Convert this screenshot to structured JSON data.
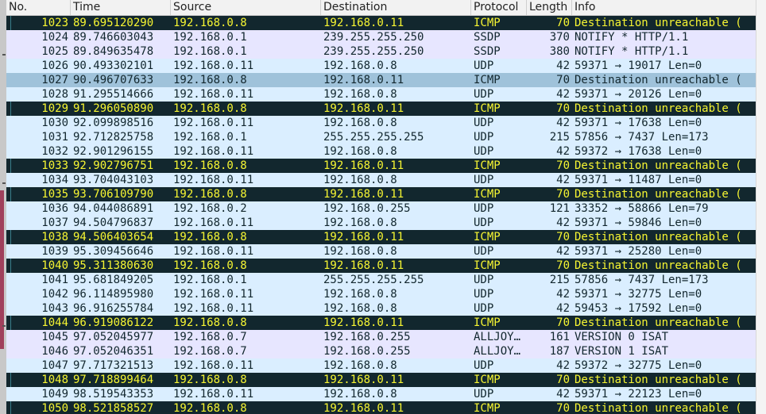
{
  "columns": [
    "No.",
    "Time",
    "Source",
    "Destination",
    "Protocol",
    "Length",
    "Info"
  ],
  "colors": {
    "icmp_bg": "#12272e",
    "icmp_fg": "#f7f632",
    "udp_bg": "#daeeff",
    "other_bg": "#e7e6ff",
    "selected_bg": "#9fc2da"
  },
  "packets": [
    {
      "no": "1023",
      "time": "89.695120290",
      "src": "192.168.0.8",
      "dst": "192.168.0.11",
      "proto": "ICMP",
      "len": "70",
      "info": "Destination unreachable (",
      "kind": "icmp"
    },
    {
      "no": "1024",
      "time": "89.746603043",
      "src": "192.168.0.1",
      "dst": "239.255.255.250",
      "proto": "SSDP",
      "len": "370",
      "info": "NOTIFY * HTTP/1.1",
      "kind": "other"
    },
    {
      "no": "1025",
      "time": "89.849635478",
      "src": "192.168.0.1",
      "dst": "239.255.255.250",
      "proto": "SSDP",
      "len": "380",
      "info": "NOTIFY * HTTP/1.1",
      "kind": "other"
    },
    {
      "no": "1026",
      "time": "90.493302101",
      "src": "192.168.0.11",
      "dst": "192.168.0.8",
      "proto": "UDP",
      "len": "42",
      "info": "59371 → 19017 Len=0",
      "kind": "udp"
    },
    {
      "no": "1027",
      "time": "90.496707633",
      "src": "192.168.0.8",
      "dst": "192.168.0.11",
      "proto": "ICMP",
      "len": "70",
      "info": "Destination unreachable (",
      "kind": "sel"
    },
    {
      "no": "1028",
      "time": "91.295514666",
      "src": "192.168.0.11",
      "dst": "192.168.0.8",
      "proto": "UDP",
      "len": "42",
      "info": "59371 → 20126 Len=0",
      "kind": "udp"
    },
    {
      "no": "1029",
      "time": "91.296050890",
      "src": "192.168.0.8",
      "dst": "192.168.0.11",
      "proto": "ICMP",
      "len": "70",
      "info": "Destination unreachable (",
      "kind": "icmp"
    },
    {
      "no": "1030",
      "time": "92.099898516",
      "src": "192.168.0.11",
      "dst": "192.168.0.8",
      "proto": "UDP",
      "len": "42",
      "info": "59371 → 17638 Len=0",
      "kind": "udp"
    },
    {
      "no": "1031",
      "time": "92.712825758",
      "src": "192.168.0.1",
      "dst": "255.255.255.255",
      "proto": "UDP",
      "len": "215",
      "info": "57856 → 7437 Len=173",
      "kind": "udp"
    },
    {
      "no": "1032",
      "time": "92.901296155",
      "src": "192.168.0.11",
      "dst": "192.168.0.8",
      "proto": "UDP",
      "len": "42",
      "info": "59372 → 17638 Len=0",
      "kind": "udp"
    },
    {
      "no": "1033",
      "time": "92.902796751",
      "src": "192.168.0.8",
      "dst": "192.168.0.11",
      "proto": "ICMP",
      "len": "70",
      "info": "Destination unreachable (",
      "kind": "icmp"
    },
    {
      "no": "1034",
      "time": "93.704043103",
      "src": "192.168.0.11",
      "dst": "192.168.0.8",
      "proto": "UDP",
      "len": "42",
      "info": "59371 → 11487 Len=0",
      "kind": "udp"
    },
    {
      "no": "1035",
      "time": "93.706109790",
      "src": "192.168.0.8",
      "dst": "192.168.0.11",
      "proto": "ICMP",
      "len": "70",
      "info": "Destination unreachable (",
      "kind": "icmp"
    },
    {
      "no": "1036",
      "time": "94.044086891",
      "src": "192.168.0.2",
      "dst": "192.168.0.255",
      "proto": "UDP",
      "len": "121",
      "info": "33352 → 58866 Len=79",
      "kind": "udp"
    },
    {
      "no": "1037",
      "time": "94.504796837",
      "src": "192.168.0.11",
      "dst": "192.168.0.8",
      "proto": "UDP",
      "len": "42",
      "info": "59371 → 59846 Len=0",
      "kind": "udp"
    },
    {
      "no": "1038",
      "time": "94.506403654",
      "src": "192.168.0.8",
      "dst": "192.168.0.11",
      "proto": "ICMP",
      "len": "70",
      "info": "Destination unreachable (",
      "kind": "icmp"
    },
    {
      "no": "1039",
      "time": "95.309456646",
      "src": "192.168.0.11",
      "dst": "192.168.0.8",
      "proto": "UDP",
      "len": "42",
      "info": "59371 → 25280 Len=0",
      "kind": "udp"
    },
    {
      "no": "1040",
      "time": "95.311380630",
      "src": "192.168.0.8",
      "dst": "192.168.0.11",
      "proto": "ICMP",
      "len": "70",
      "info": "Destination unreachable (",
      "kind": "icmp"
    },
    {
      "no": "1041",
      "time": "95.681849205",
      "src": "192.168.0.1",
      "dst": "255.255.255.255",
      "proto": "UDP",
      "len": "215",
      "info": "57856 → 7437 Len=173",
      "kind": "udp"
    },
    {
      "no": "1042",
      "time": "96.114895980",
      "src": "192.168.0.11",
      "dst": "192.168.0.8",
      "proto": "UDP",
      "len": "42",
      "info": "59371 → 32775 Len=0",
      "kind": "udp"
    },
    {
      "no": "1043",
      "time": "96.916255784",
      "src": "192.168.0.11",
      "dst": "192.168.0.8",
      "proto": "UDP",
      "len": "42",
      "info": "59453 → 17592 Len=0",
      "kind": "udp"
    },
    {
      "no": "1044",
      "time": "96.919086122",
      "src": "192.168.0.8",
      "dst": "192.168.0.11",
      "proto": "ICMP",
      "len": "70",
      "info": "Destination unreachable (",
      "kind": "icmp"
    },
    {
      "no": "1045",
      "time": "97.052045977",
      "src": "192.168.0.7",
      "dst": "192.168.0.255",
      "proto": "ALLJOY…",
      "len": "161",
      "info": "VERSION 0 ISAT",
      "kind": "other"
    },
    {
      "no": "1046",
      "time": "97.052046351",
      "src": "192.168.0.7",
      "dst": "192.168.0.255",
      "proto": "ALLJOY…",
      "len": "187",
      "info": "VERSION 1 ISAT",
      "kind": "other"
    },
    {
      "no": "1047",
      "time": "97.717321513",
      "src": "192.168.0.11",
      "dst": "192.168.0.8",
      "proto": "UDP",
      "len": "42",
      "info": "59372 → 32775 Len=0",
      "kind": "udp"
    },
    {
      "no": "1048",
      "time": "97.718899464",
      "src": "192.168.0.8",
      "dst": "192.168.0.11",
      "proto": "ICMP",
      "len": "70",
      "info": "Destination unreachable (",
      "kind": "icmp"
    },
    {
      "no": "1049",
      "time": "98.519543353",
      "src": "192.168.0.11",
      "dst": "192.168.0.8",
      "proto": "UDP",
      "len": "42",
      "info": "59371 → 22123 Len=0",
      "kind": "udp"
    },
    {
      "no": "1050",
      "time": "98.521858527",
      "src": "192.168.0.8",
      "dst": "192.168.0.11",
      "proto": "ICMP",
      "len": "70",
      "info": "Destination unreachable (",
      "kind": "icmp"
    }
  ]
}
